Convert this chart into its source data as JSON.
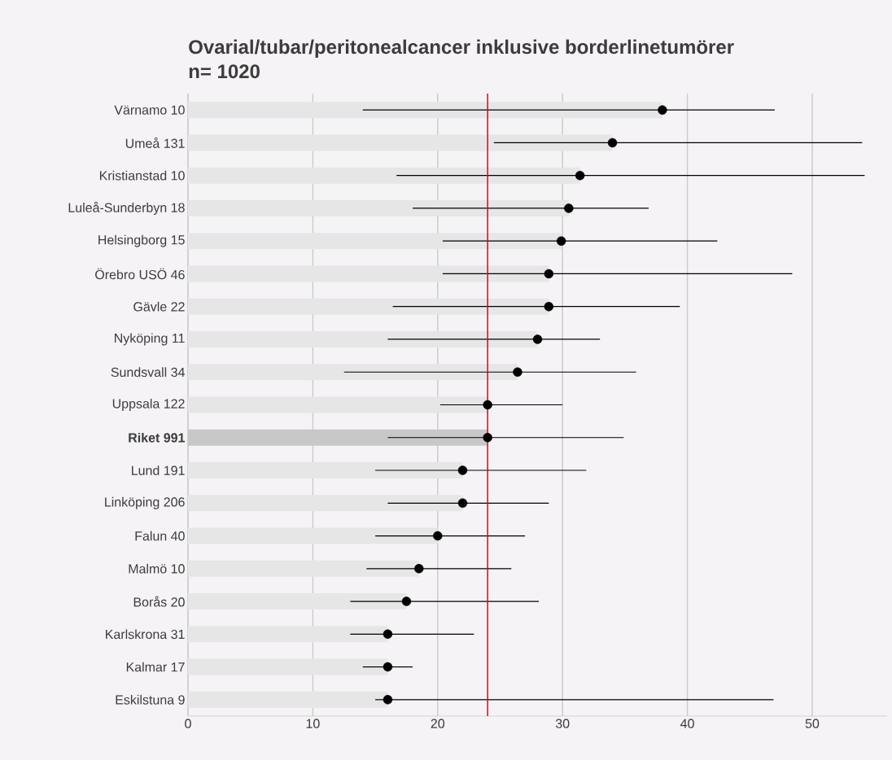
{
  "chart_data": {
    "type": "bar",
    "orientation": "horizontal",
    "title": "Ovarial/tubar/peritonealcancer inklusive borderlinetumörer",
    "subtitle": "n= 1020",
    "categories": [
      "Värnamo 10",
      "Umeå 131",
      "Kristianstad 10",
      "Luleå-Sunderbyn 18",
      "Helsingborg 15",
      "Örebro USÖ 46",
      "Gävle 22",
      "Nyköping 11",
      "Sundsvall 34",
      "Uppsala 122",
      "**Riket 991**",
      "Lund 191",
      "Linköping 206",
      "Falun 40",
      "Malmö 10",
      "Borås 20",
      "Karlskrona 31",
      "Kalmar 17",
      "Eskilstuna 9"
    ],
    "series": [
      {
        "type": "bar",
        "colors": [
          "#e6e6e6",
          "#e6e6e6",
          "#e6e6e6",
          "#e6e6e6",
          "#e6e6e6",
          "#e6e6e6",
          "#e6e6e6",
          "#e6e6e6",
          "#e6e6e6",
          "#e6e6e6",
          "#c8c8c8",
          "#e6e6e6",
          "#e6e6e6",
          "#e6e6e6",
          "#e6e6e6",
          "#e6e6e6",
          "#e6e6e6",
          "#e6e6e6",
          "#e6e6e6"
        ],
        "values": [
          38,
          34,
          31.4,
          30.5,
          29.9,
          28.9,
          28.9,
          28,
          26.4,
          24,
          24,
          22,
          22,
          20,
          18.5,
          17.5,
          16,
          16,
          16
        ]
      },
      {
        "type": "scatter",
        "color": "#000000",
        "marker": "circle",
        "values": [
          38,
          34,
          31.4,
          30.5,
          29.9,
          28.9,
          28.9,
          28,
          26.4,
          24,
          24,
          22,
          22,
          20,
          18.5,
          17.5,
          16,
          16,
          16
        ],
        "errors": [
          [
            14,
            47
          ],
          [
            24.5,
            54
          ],
          [
            16.7,
            54.2
          ],
          [
            18,
            36.9
          ],
          [
            20.4,
            42.4
          ],
          [
            20.4,
            48.4
          ],
          [
            16.4,
            39.4
          ],
          [
            16,
            33
          ],
          [
            12.5,
            35.9
          ],
          [
            20.2,
            30
          ],
          [
            16,
            34.9
          ],
          [
            15,
            31.9
          ],
          [
            16,
            28.9
          ],
          [
            15,
            27
          ],
          [
            14.3,
            25.9
          ],
          [
            13,
            28.1
          ],
          [
            13,
            22.9
          ],
          [
            14,
            18
          ],
          [
            15,
            46.9
          ]
        ]
      }
    ],
    "xlim": [
      0,
      56
    ],
    "xticks": [
      0,
      10,
      20,
      30,
      40,
      50
    ],
    "grid": "x",
    "ref_lines": [
      {
        "axis": "x",
        "value": 24,
        "color": "#e8000b"
      }
    ]
  }
}
